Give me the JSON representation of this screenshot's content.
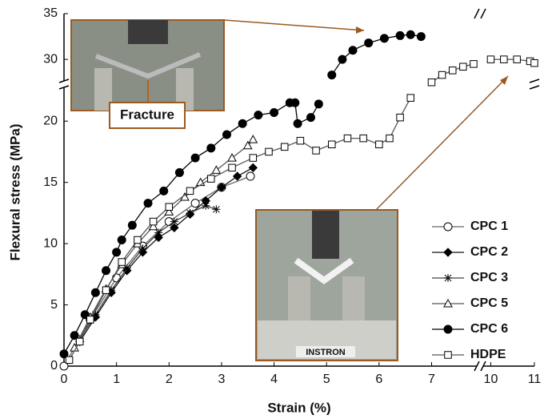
{
  "chart_data": {
    "type": "line",
    "x_label": "Strain (%)",
    "y_label": "Flexural stress (MPa)",
    "xlim": [
      0,
      11
    ],
    "ylim": [
      0,
      35
    ],
    "xbreak": [
      7.8,
      9.9
    ],
    "ybreak": [
      22.5,
      28
    ],
    "xticks": [
      0,
      1,
      2,
      3,
      4,
      5,
      6,
      7,
      10,
      11
    ],
    "yticks": [
      0,
      5,
      10,
      15,
      20,
      30,
      35
    ],
    "annotations": [
      "Fracture",
      "INSTRON"
    ],
    "series": [
      {
        "name": "CPC 1",
        "marker": "circle-open",
        "color": "#666666",
        "x": [
          0,
          0.5,
          1.0,
          1.5,
          2.0,
          2.5,
          3.0,
          3.55
        ],
        "values": [
          0,
          3.8,
          7.2,
          9.8,
          11.8,
          13.3,
          14.6,
          15.5
        ]
      },
      {
        "name": "CPC 2",
        "marker": "diamond",
        "color": "#111111",
        "x": [
          0.3,
          0.6,
          0.9,
          1.2,
          1.5,
          1.8,
          2.1,
          2.4,
          2.7,
          3.0,
          3.3,
          3.6
        ],
        "values": [
          2,
          4,
          6,
          7.8,
          9.3,
          10.5,
          11.3,
          12.4,
          13.5,
          14.6,
          15.5,
          16.2
        ]
      },
      {
        "name": "CPC 3",
        "marker": "asterisk",
        "color": "#444444",
        "x": [
          0.3,
          0.6,
          0.9,
          1.2,
          1.5,
          1.8,
          2.1,
          2.4,
          2.7,
          2.9
        ],
        "values": [
          2.2,
          4.2,
          6.2,
          8,
          9.6,
          10.9,
          11.8,
          12.5,
          13.1,
          12.8
        ]
      },
      {
        "name": "CPC 5",
        "marker": "triangle-open",
        "color": "#555555",
        "x": [
          0.2,
          0.5,
          0.8,
          1.1,
          1.4,
          1.7,
          2.0,
          2.3,
          2.6,
          2.9,
          3.2,
          3.5,
          3.6
        ],
        "values": [
          1.5,
          4,
          6.3,
          8.3,
          10,
          11.4,
          12.6,
          13.8,
          15,
          16,
          17,
          18,
          18.5
        ]
      },
      {
        "name": "CPC 6",
        "marker": "circle",
        "color": "#000000",
        "x": [
          0,
          0.2,
          0.4,
          0.6,
          0.8,
          1.0,
          1.1,
          1.3,
          1.6,
          1.9,
          2.2,
          2.5,
          2.8,
          3.1,
          3.4,
          3.7,
          4.0,
          4.3,
          4.4,
          4.45,
          4.7,
          4.85,
          null,
          5.1,
          5.3,
          5.5,
          5.8,
          6.1,
          6.4,
          6.6,
          6.8
        ],
        "values": [
          1,
          2.5,
          4.2,
          6,
          7.8,
          9.3,
          10.3,
          11.5,
          13.3,
          14.3,
          15.8,
          17,
          17.8,
          18.9,
          19.8,
          20.5,
          20.7,
          21.5,
          21.5,
          19.8,
          20.3,
          21.4,
          null,
          28.3,
          30,
          31,
          31.8,
          32.3,
          32.6,
          32.7,
          32.5
        ]
      },
      {
        "name": "HDPE",
        "marker": "square-open",
        "color": "#555555",
        "x": [
          0.1,
          0.3,
          0.5,
          0.8,
          1.1,
          1.4,
          1.7,
          2.0,
          2.4,
          2.8,
          3.2,
          3.6,
          3.9,
          4.2,
          4.5,
          4.8,
          5.1,
          5.4,
          5.7,
          6.0,
          6.2,
          6.4,
          6.6,
          null,
          7.0,
          7.2,
          7.4,
          7.6,
          7.8,
          null,
          10.0,
          10.3,
          10.6,
          10.9,
          11.0
        ],
        "values": [
          0.5,
          2,
          3.8,
          6.2,
          8.5,
          10.3,
          11.8,
          13,
          14.3,
          15.3,
          16.2,
          17,
          17.5,
          17.9,
          18.4,
          17.6,
          18.1,
          18.6,
          18.6,
          18.1,
          18.6,
          20.3,
          21.9,
          null,
          27.5,
          28.3,
          28.8,
          29.2,
          29.5,
          null,
          30,
          30,
          30,
          29.8,
          29.6
        ]
      }
    ]
  }
}
